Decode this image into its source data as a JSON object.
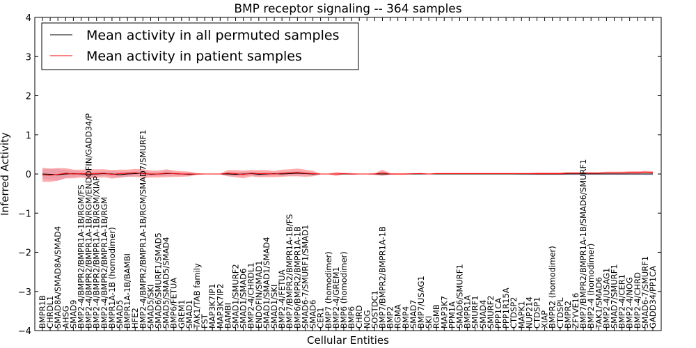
{
  "chart_data": {
    "type": "line",
    "title": "BMP receptor signaling -- 364 samples",
    "xlabel": "Cellular Entities",
    "ylabel": "Inferred Activity",
    "ylim": [
      -4,
      4
    ],
    "yticks": [
      "−4",
      "−3",
      "−2",
      "−1",
      "0",
      "1",
      "2",
      "3",
      "4"
    ],
    "legend_position": "top-left",
    "categories": [
      "BMPR1B",
      "CHRDL1",
      "SMAD8A/SMAD8A/SMAD4",
      "AHSG",
      "SMAD9",
      "BMP2-4/BMPR2/BMPR1A-1B/RGM/FS",
      "BMP2-4/BMPR2/BMPR1A-1B/RGM/ENDOFIN/GADD34/P",
      "BMP2-4/BMPR2/BMPR1A-1B/RGM/XIAP",
      "BMP2-4/BMPR2/BMPR1A-1B/RGM",
      "BMPR1A-1B (homodimer)",
      "SMAD5",
      "BMPR1A-1B/BAMBI",
      "HFE2",
      "BMP2-4/BMPR2/BMPR1A-1B/RGM/SMAD7/SMURF1",
      "SMAD5/SKI",
      "SMAD6/SMURF1/SMAD5",
      "SMAD5/SMAD5/SMAD4",
      "BMP6/FETUA",
      "GREM1",
      "SMAD1",
      "TAK1/TAB family",
      "FST",
      "MAP3K7IP1",
      "MAP3K7IP2",
      "BAMBI",
      "SMAD1/SMURF2",
      "SMAD1/SMAD6",
      "BMP2-4/CHRDL1",
      "ENDOFIN/SMAD1",
      "SMAD1/SMAD1/SMAD4",
      "SMAD1/SKI",
      "BMP2-4/FETUA",
      "BMP7/BMPR2/BMPR1A-1B/FS",
      "BMP6/BMPR2/BMPR1A-1B",
      "SMAD6-7/SMURF1/SMAD1",
      "SMAD6",
      "CER1",
      "BMP7 (homodimer)",
      "BMP2-4/GREM1",
      "BMP6 (homodimer)",
      "BMP6",
      "CHRD",
      "NOG",
      "SOSTDC1",
      "BMP7/BMPR2/BMPR1A-1B",
      "BMP2",
      "RGMA",
      "BMP4",
      "SMAD7",
      "BMP7/USAG1",
      "SKI",
      "RGMB",
      "MAP3K7",
      "PPM1A",
      "SMAD6/SMURF1",
      "BMPR1A",
      "SMURF1",
      "SMAD4",
      "SMURF2",
      "PPP1CA",
      "PPP1R15A",
      "CTDSP2",
      "MAPK1",
      "NUP214",
      "CTDSP1",
      "XIAP",
      "BMPR2 (homodimer)",
      "CTDSPL",
      "BMPR2",
      "ZFYVE16",
      "BMP7/BMPR2/BMPR1A-1B/SMAD6/SMURF1",
      "BMP2-4 (homodimer)",
      "TAK1/SMAD6",
      "BMP2-4/USAG1",
      "SMAD7/SMURF1",
      "BMP2-4/CER1",
      "BMP2-4/NOG",
      "BMP2-4/CHRD",
      "SMAD6-7/SMURF1",
      "GADD34/PP1CA"
    ],
    "series": [
      {
        "name": "Mean activity in all permuted samples",
        "color": "#000000",
        "band_color": "#b8b8e8",
        "values": [
          0.0,
          -0.01,
          -0.02,
          0.0,
          0.01,
          0.0,
          -0.01,
          0.0,
          0.01,
          0.0,
          -0.02,
          0.0,
          0.01,
          0.02,
          -0.01,
          0.0,
          0.01,
          0.01,
          0.0,
          -0.01,
          0.0,
          0.0,
          0.0,
          0.0,
          0.0,
          -0.01,
          0.0,
          0.01,
          -0.01,
          0.0,
          0.01,
          0.0,
          0.01,
          0.02,
          0.01,
          0.0,
          0.0,
          0.0,
          0.0,
          0.0,
          0.0,
          0.0,
          0.0,
          0.0,
          0.0,
          0.0,
          0.0,
          0.0,
          0.0,
          0.0,
          0.0,
          0.0,
          0.0,
          0.0,
          0.0,
          0.0,
          0.0,
          0.0,
          0.0,
          0.0,
          0.0,
          0.0,
          0.0,
          0.0,
          0.0,
          0.0,
          0.0,
          0.0,
          0.0,
          0.0,
          0.0,
          0.0,
          0.0,
          0.0,
          0.0,
          0.0,
          0.0,
          0.0,
          0.0,
          0.0
        ],
        "spread": [
          0.12,
          0.14,
          0.15,
          0.1,
          0.08,
          0.06,
          0.07,
          0.06,
          0.05,
          0.07,
          0.08,
          0.06,
          0.06,
          0.07,
          0.05,
          0.05,
          0.06,
          0.05,
          0.04,
          0.04,
          0.02,
          0.01,
          0.01,
          0.01,
          0.04,
          0.05,
          0.06,
          0.05,
          0.05,
          0.05,
          0.04,
          0.05,
          0.05,
          0.06,
          0.05,
          0.04,
          0.01,
          0.01,
          0.02,
          0.01,
          0.02,
          0.01,
          0.01,
          0.02,
          0.02,
          0.02,
          0.01,
          0.01,
          0.01,
          0.01,
          0.01,
          0.01,
          0.01,
          0.01,
          0.01,
          0.01,
          0.01,
          0.01,
          0.01,
          0.01,
          0.01,
          0.01,
          0.02,
          0.02,
          0.02,
          0.02,
          0.02,
          0.02,
          0.02,
          0.02,
          0.02,
          0.02,
          0.02,
          0.02,
          0.02,
          0.02,
          0.02,
          0.02,
          0.02,
          0.02
        ]
      },
      {
        "name": "Mean activity in patient samples",
        "color": "#ff0000",
        "band_color": "#ff7777",
        "values": [
          -0.02,
          -0.03,
          -0.01,
          0.02,
          0.0,
          0.01,
          0.0,
          0.01,
          0.02,
          -0.01,
          0.01,
          0.02,
          0.03,
          0.01,
          0.0,
          0.0,
          0.02,
          0.01,
          0.0,
          0.0,
          0.0,
          0.0,
          0.0,
          0.0,
          0.02,
          0.01,
          -0.01,
          0.02,
          0.01,
          0.01,
          0.0,
          0.02,
          0.03,
          0.04,
          0.02,
          0.01,
          0.0,
          0.0,
          0.0,
          0.01,
          0.0,
          0.0,
          0.0,
          0.0,
          0.03,
          0.0,
          0.0,
          0.0,
          0.01,
          0.01,
          0.0,
          0.01,
          0.01,
          0.01,
          0.01,
          0.01,
          0.01,
          0.01,
          0.01,
          0.01,
          0.01,
          0.01,
          0.01,
          0.01,
          0.01,
          0.01,
          0.01,
          0.01,
          0.02,
          0.02,
          0.02,
          0.02,
          0.02,
          0.03,
          0.03,
          0.03,
          0.04,
          0.04,
          0.05,
          0.04
        ],
        "spread": [
          0.18,
          0.17,
          0.16,
          0.13,
          0.11,
          0.1,
          0.12,
          0.11,
          0.1,
          0.11,
          0.1,
          0.09,
          0.1,
          0.11,
          0.09,
          0.09,
          0.1,
          0.08,
          0.07,
          0.06,
          0.02,
          0.01,
          0.01,
          0.01,
          0.08,
          0.09,
          0.1,
          0.08,
          0.09,
          0.09,
          0.08,
          0.09,
          0.09,
          0.1,
          0.09,
          0.07,
          0.01,
          0.01,
          0.05,
          0.02,
          0.02,
          0.01,
          0.01,
          0.02,
          0.08,
          0.02,
          0.02,
          0.02,
          0.01,
          0.02,
          0.01,
          0.02,
          0.02,
          0.02,
          0.02,
          0.02,
          0.02,
          0.02,
          0.02,
          0.02,
          0.02,
          0.02,
          0.02,
          0.02,
          0.03,
          0.03,
          0.03,
          0.03,
          0.03,
          0.03,
          0.03,
          0.03,
          0.03,
          0.03,
          0.03,
          0.03,
          0.03,
          0.03,
          0.03,
          0.03
        ]
      }
    ]
  }
}
